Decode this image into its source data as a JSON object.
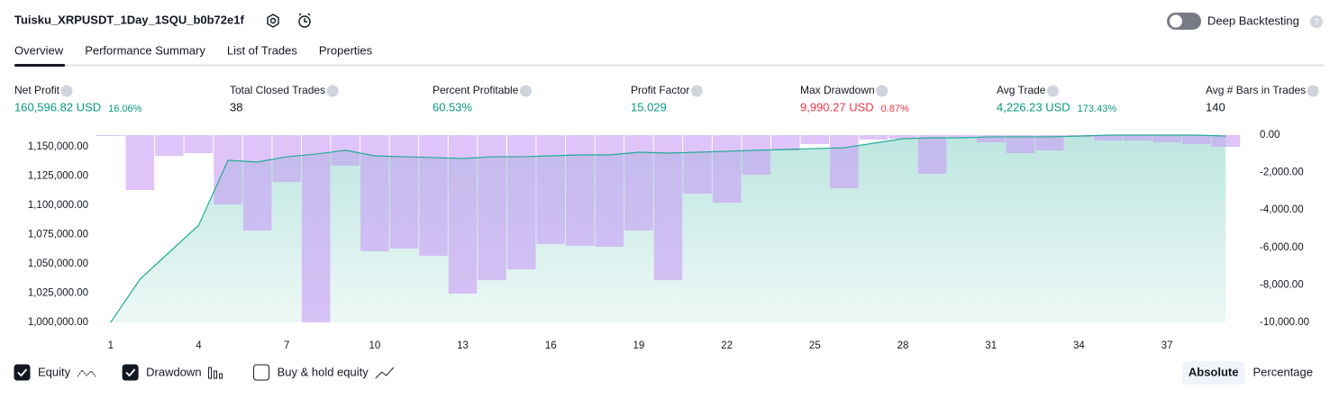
{
  "header": {
    "title": "Tuisku_XRPUSDT_1Day_1SQU_b0b72e1f",
    "toggle_label": "Deep Backtesting",
    "toggle_on": false
  },
  "tabs": [
    {
      "label": "Overview",
      "active": true
    },
    {
      "label": "Performance Summary",
      "active": false
    },
    {
      "label": "List of Trades",
      "active": false
    },
    {
      "label": "Properties",
      "active": false
    }
  ],
  "stats": [
    {
      "label": "Net Profit",
      "value": "160,596.82 USD",
      "percent": "16.06%",
      "tone": "positive"
    },
    {
      "label": "Total Closed Trades",
      "value": "38",
      "tone": "neutral"
    },
    {
      "label": "Percent Profitable",
      "value": "60.53%",
      "tone": "positive"
    },
    {
      "label": "Profit Factor",
      "value": "15.029",
      "tone": "positive"
    },
    {
      "label": "Max Drawdown",
      "value": "9,990.27 USD",
      "percent": "0.87%",
      "tone": "negative"
    },
    {
      "label": "Avg Trade",
      "value": "4,226.23 USD",
      "percent": "173.43%",
      "tone": "positive"
    },
    {
      "label": "Avg # Bars in Trades",
      "value": "140",
      "tone": "neutral"
    }
  ],
  "chart_data": {
    "type": "line",
    "x": [
      1,
      2,
      3,
      4,
      5,
      6,
      7,
      8,
      9,
      10,
      11,
      12,
      13,
      14,
      15,
      16,
      17,
      18,
      19,
      20,
      21,
      22,
      23,
      24,
      25,
      26,
      27,
      28,
      29,
      30,
      31,
      32,
      33,
      34,
      35,
      36,
      37,
      38,
      39
    ],
    "xlim": [
      0.5,
      39.5
    ],
    "xticks": [
      1,
      4,
      7,
      10,
      13,
      16,
      19,
      22,
      25,
      28,
      31,
      34,
      37
    ],
    "ylim": [
      1000000,
      1160000
    ],
    "yticks": [
      {
        "value": 1000000,
        "label": "1,000,000.00"
      },
      {
        "value": 1025000,
        "label": "1,025,000.00"
      },
      {
        "value": 1050000,
        "label": "1,050,000.00"
      },
      {
        "value": 1075000,
        "label": "1,075,000.00"
      },
      {
        "value": 1100000,
        "label": "1,100,000.00"
      },
      {
        "value": 1125000,
        "label": "1,125,000.00"
      },
      {
        "value": 1150000,
        "label": "1,150,000.00"
      }
    ],
    "y2lim": [
      -10000,
      0
    ],
    "y2ticks": [
      {
        "value": 0,
        "label": "0.00"
      },
      {
        "value": -2000,
        "label": "-2,000.00"
      },
      {
        "value": -4000,
        "label": "-4,000.00"
      },
      {
        "value": -6000,
        "label": "-6,000.00"
      },
      {
        "value": -8000,
        "label": "-8,000.00"
      },
      {
        "value": -10000,
        "label": "-10,000.00"
      }
    ],
    "series": [
      {
        "name": "Equity",
        "type": "line",
        "axis": "y",
        "color": "#22ab94",
        "visible": true,
        "values": [
          1000000,
          1036900,
          1060000,
          1083000,
          1138500,
          1137000,
          1141500,
          1143800,
          1147000,
          1142300,
          1141500,
          1140800,
          1140000,
          1141500,
          1141500,
          1142300,
          1143100,
          1143100,
          1145400,
          1144600,
          1145400,
          1146200,
          1147000,
          1147700,
          1148500,
          1149200,
          1153100,
          1156900,
          1157700,
          1157700,
          1158500,
          1158500,
          1158500,
          1159200,
          1160000,
          1160000,
          1160000,
          1160000,
          1159200
        ]
      },
      {
        "name": "Drawdown",
        "type": "bar",
        "axis": "y2",
        "color": "#c89cf5",
        "visible": true,
        "values": [
          -50,
          -2933,
          -1106,
          -962,
          -3702,
          -5096,
          -2500,
          -9990.27,
          -1635,
          -6202,
          -6058,
          -6442,
          -8462,
          -7740,
          -7163,
          -5817,
          -5913,
          -5962,
          -5096,
          -7740,
          -3125,
          -3606,
          -2115,
          -817,
          -481,
          -2837,
          -240,
          -192,
          -2067,
          -144,
          -385,
          -962,
          -817,
          -96,
          -288,
          -288,
          -385,
          -481,
          -625
        ]
      }
    ],
    "legend_extra": {
      "name": "Buy & hold equity",
      "checked": false
    },
    "modes": [
      {
        "label": "Absolute",
        "active": true
      },
      {
        "label": "Percentage",
        "active": false
      }
    ]
  }
}
